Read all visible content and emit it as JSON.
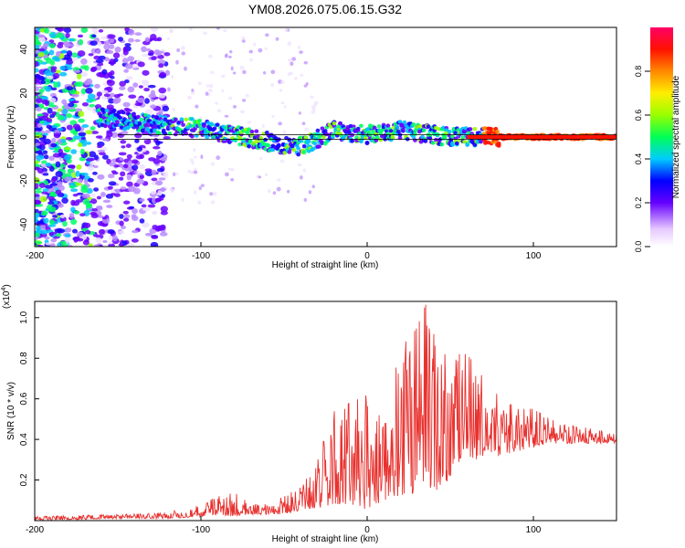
{
  "title": "YM08.2026.075.06.15.G32",
  "chart_data": [
    {
      "type": "heatmap",
      "name": "spectrogram",
      "xlabel": "Height of straight line (km)",
      "ylabel": "Frequency (Hz)",
      "xlim": [
        -200,
        150
      ],
      "ylim": [
        -50,
        50
      ],
      "xticks": [
        -200,
        -100,
        0,
        100
      ],
      "yticks": [
        -40,
        -20,
        0,
        20,
        40
      ],
      "colorbar": {
        "label": "Normalized spectral amplitude",
        "range": [
          0,
          1
        ],
        "ticks": [
          "0.0",
          "0.2",
          "0.4",
          "0.6",
          "0.8"
        ]
      },
      "ridge": {
        "x": [
          -160,
          -140,
          -120,
          -100,
          -80,
          -60,
          -50,
          -40,
          -30,
          -20,
          -10,
          0,
          10,
          20,
          30,
          40,
          50,
          60,
          70,
          80,
          100,
          120,
          150
        ],
        "freq_hz": [
          9,
          7,
          5,
          4,
          1,
          -2,
          -4,
          -4,
          -1,
          3,
          2,
          1,
          2,
          3,
          2,
          1,
          0,
          0,
          0,
          0,
          0,
          0,
          0
        ]
      },
      "reference_line_hz": [
        1,
        -1
      ]
    },
    {
      "type": "line",
      "name": "snr",
      "xlabel": "Height of straight line (km)",
      "ylabel": "SNR (10 * v/v)",
      "y_multiplier": "(x10",
      "y_multiplier_exp": "4",
      "y_multiplier_close": ")",
      "xlim": [
        -200,
        150
      ],
      "ylim": [
        0,
        1.08
      ],
      "xticks": [
        -200,
        -100,
        0,
        100
      ],
      "yticks": [
        0.2,
        0.4,
        0.6,
        0.8,
        1.0
      ],
      "ytick_labels": [
        "0.2",
        "0.4",
        "0.6",
        "0.8",
        "1.0"
      ],
      "color": "#e8322f",
      "envelope": {
        "x": [
          -200,
          -150,
          -120,
          -100,
          -90,
          -80,
          -70,
          -60,
          -50,
          -40,
          -30,
          -20,
          -10,
          0,
          10,
          20,
          30,
          35,
          40,
          50,
          60,
          70,
          80,
          90,
          100,
          110,
          120,
          130,
          150
        ],
        "upper": [
          0.02,
          0.03,
          0.04,
          0.08,
          0.12,
          0.14,
          0.08,
          0.08,
          0.12,
          0.18,
          0.3,
          0.55,
          0.58,
          0.62,
          0.7,
          0.85,
          0.95,
          1.07,
          0.92,
          0.82,
          0.82,
          0.72,
          0.6,
          0.56,
          0.55,
          0.5,
          0.47,
          0.46,
          0.43
        ],
        "lower": [
          0.0,
          0.01,
          0.01,
          0.02,
          0.03,
          0.02,
          0.03,
          0.03,
          0.03,
          0.05,
          0.06,
          0.08,
          0.08,
          0.05,
          0.1,
          0.12,
          0.14,
          0.18,
          0.14,
          0.2,
          0.28,
          0.3,
          0.32,
          0.34,
          0.36,
          0.38,
          0.38,
          0.38,
          0.38
        ]
      }
    }
  ]
}
